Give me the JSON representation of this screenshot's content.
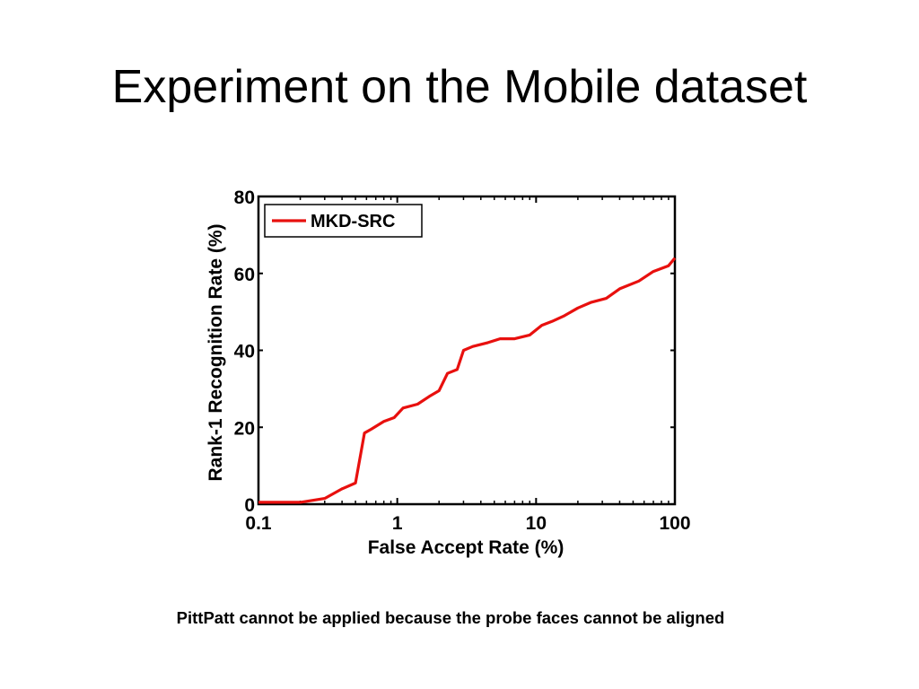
{
  "slide": {
    "title": "Experiment on the Mobile dataset",
    "caption": "PittPatt cannot be applied because the probe faces cannot be aligned"
  },
  "chart_data": {
    "type": "line",
    "xscale": "log",
    "xlabel": "False Accept Rate (%)",
    "ylabel": "Rank-1 Recognition Rate (%)",
    "xlim": [
      0.1,
      100
    ],
    "ylim": [
      0,
      80
    ],
    "xticks": [
      0.1,
      1,
      10,
      100
    ],
    "xtick_labels": [
      "0.1",
      "1",
      "10",
      "100"
    ],
    "yticks": [
      0,
      20,
      40,
      60,
      80
    ],
    "ytick_labels": [
      "0",
      "20",
      "40",
      "60",
      "80"
    ],
    "grid": false,
    "legend_position": "top-left",
    "series_color": "#e8100e",
    "series": [
      {
        "name": "MKD-SRC",
        "x": [
          0.1,
          0.2,
          0.3,
          0.4,
          0.5,
          0.58,
          0.65,
          0.8,
          0.95,
          1.1,
          1.4,
          1.7,
          2.0,
          2.3,
          2.7,
          3.0,
          3.5,
          4.5,
          5.5,
          7.0,
          9.0,
          11,
          13,
          16,
          20,
          25,
          32,
          40,
          55,
          70,
          90,
          100
        ],
        "y": [
          0.5,
          0.5,
          1.5,
          4,
          5.5,
          18.5,
          19.5,
          21.5,
          22.5,
          25,
          26,
          28,
          29.5,
          34,
          35,
          40,
          41,
          42,
          43,
          43,
          44,
          46.5,
          47.5,
          49,
          51,
          52.5,
          53.5,
          56,
          58,
          60.5,
          62,
          64
        ]
      }
    ]
  }
}
